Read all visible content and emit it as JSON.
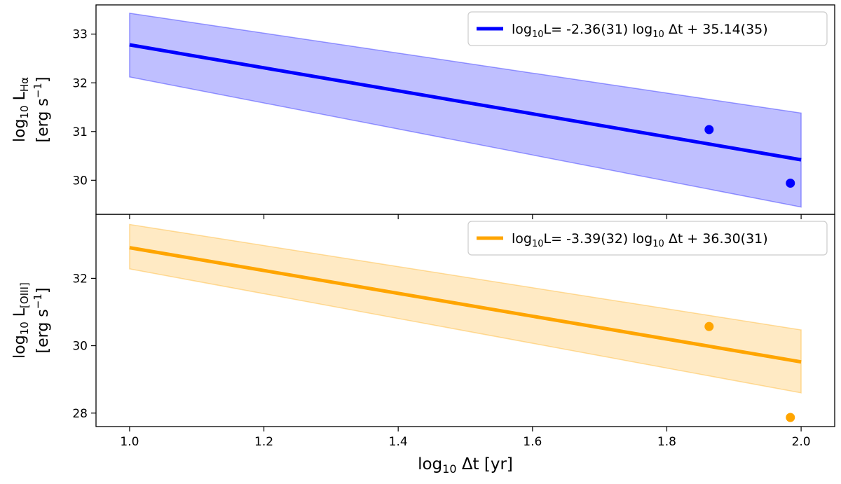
{
  "chart_data": [
    {
      "type": "line",
      "panel": "top",
      "ylabel": {
        "line1_prefix": "log",
        "line1_sub": "10",
        "line1_main": " L",
        "line1_main_sub": "Hα",
        "line2_prefix": "[erg s",
        "line2_sup": "−1",
        "line2_suffix": "]"
      },
      "xlim": [
        0.95,
        2.05
      ],
      "ylim": [
        29.3,
        33.6
      ],
      "yticks": [
        30,
        31,
        32,
        33
      ],
      "color": "#0000ff",
      "band_color": "#8080ff",
      "series": [
        {
          "name": "log10L= -2.36(31) log10 Δt + 35.14(35)",
          "legend": {
            "p1": "log",
            "p1_sub": "10",
            "p2": "L= -2.36(31) log",
            "p2_sub": "10",
            "p3": " Δt + 35.14(35)"
          },
          "kind": "fit",
          "x": [
            1.0,
            2.0
          ],
          "y": [
            32.78,
            30.42
          ]
        }
      ],
      "band": {
        "x": [
          1.0,
          2.0
        ],
        "upper": [
          33.43,
          31.38
        ],
        "lower": [
          32.12,
          29.45
        ]
      },
      "points": {
        "x": [
          1.863,
          1.984
        ],
        "y": [
          31.04,
          29.94
        ]
      }
    },
    {
      "type": "line",
      "panel": "bottom",
      "ylabel": {
        "line1_prefix": "log",
        "line1_sub": "10",
        "line1_main": " L",
        "line1_main_sub": "[OIII]",
        "line2_prefix": "[erg s",
        "line2_sup": "−1",
        "line2_suffix": "]"
      },
      "xlabel": {
        "prefix": "log",
        "sub": "10",
        "main": " Δt [yr]"
      },
      "xlim": [
        0.95,
        2.05
      ],
      "ylim": [
        27.6,
        33.9
      ],
      "xticks": [
        "1.0",
        "1.2",
        "1.4",
        "1.6",
        "1.8",
        "2.0"
      ],
      "yticks": [
        28,
        30,
        32
      ],
      "color": "#ffa500",
      "band_color": "#ffd68a",
      "series": [
        {
          "name": "log10L= -3.39(32) log10 Δt + 36.30(31)",
          "legend": {
            "p1": "log",
            "p1_sub": "10",
            "p2": "L= -3.39(32) log",
            "p2_sub": "10",
            "p3": " Δt + 36.30(31)"
          },
          "kind": "fit",
          "x": [
            1.0,
            2.0
          ],
          "y": [
            32.91,
            29.52
          ]
        }
      ],
      "band": {
        "x": [
          1.0,
          2.0
        ],
        "upper": [
          33.6,
          30.47
        ],
        "lower": [
          32.28,
          28.6
        ]
      },
      "points": {
        "x": [
          1.863,
          1.984
        ],
        "y": [
          30.57,
          27.87
        ]
      }
    }
  ]
}
